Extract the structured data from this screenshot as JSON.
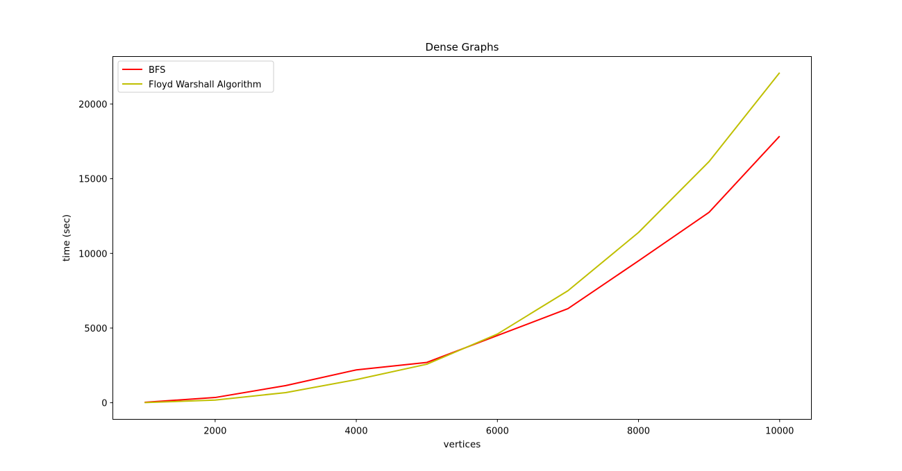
{
  "chart_data": {
    "type": "line",
    "title": "Dense Graphs",
    "xlabel": "vertices",
    "ylabel": "time  (sec)",
    "xlim": [
      550,
      10450
    ],
    "ylim": [
      -1110,
      23180
    ],
    "xticks": [
      2000,
      4000,
      6000,
      8000,
      10000
    ],
    "yticks": [
      0,
      5000,
      10000,
      15000,
      20000
    ],
    "grid": false,
    "legend_position": "top-left",
    "series": [
      {
        "name": "BFS",
        "color": "#ff0000",
        "x": [
          1000,
          2000,
          3000,
          4000,
          5000,
          6000,
          7000,
          8000,
          9000,
          10000
        ],
        "y": [
          30,
          350,
          1150,
          2200,
          2700,
          4500,
          6300,
          9500,
          12750,
          17850
        ]
      },
      {
        "name": "Floyd Warshall Algorithm",
        "color": "#bfbf00",
        "x": [
          1000,
          2000,
          3000,
          4000,
          5000,
          6000,
          7000,
          8000,
          9000,
          10000
        ],
        "y": [
          10,
          180,
          680,
          1550,
          2580,
          4600,
          7500,
          11400,
          16150,
          22100
        ]
      }
    ]
  }
}
